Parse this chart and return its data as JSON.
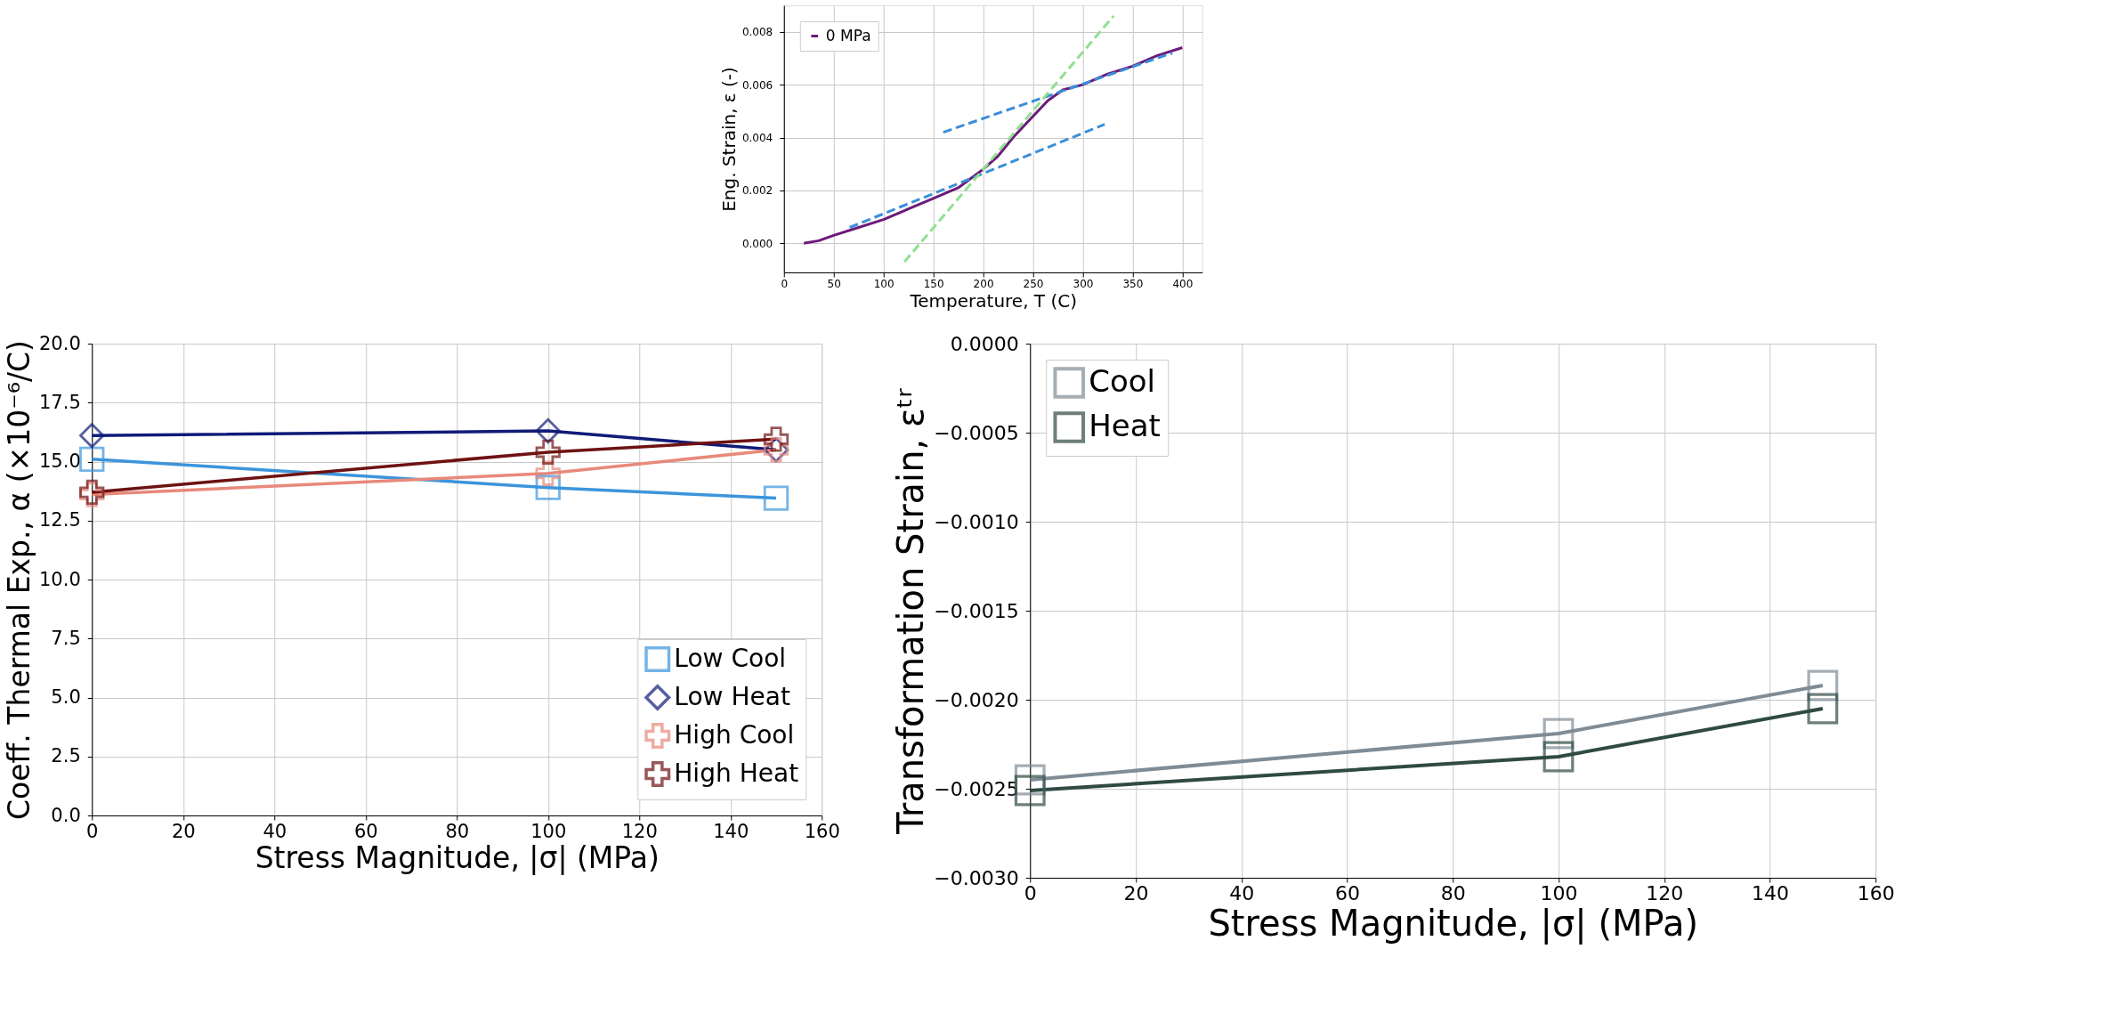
{
  "chart_data": [
    {
      "type": "line",
      "xlabel": "Temperature, T (C)",
      "ylabel": "Eng. Strain, ε (-)",
      "xlim": [
        0,
        420
      ],
      "ylim": [
        -0.0011,
        0.009
      ],
      "xticks": [
        0,
        50,
        100,
        150,
        200,
        250,
        300,
        350,
        400
      ],
      "yticks": [
        {
          "value": 0,
          "label": "0.000"
        },
        0.002,
        0.004,
        0.006,
        0.008
      ],
      "grid": true,
      "legend": "top left",
      "marker": "none",
      "series": [
        {
          "name": "0 MPa",
          "color": "#6a1b7a",
          "line_style": "solid",
          "x": [
            20,
            35,
            50,
            75,
            100,
            125,
            150,
            175,
            200,
            215,
            230,
            250,
            265,
            280,
            300,
            325,
            350,
            375,
            400
          ],
          "values": [
            0,
            0.0001,
            0.0003,
            0.0006,
            0.0009,
            0.0013,
            0.0017,
            0.0021,
            0.0028,
            0.0033,
            0.004,
            0.0048,
            0.0054,
            0.0058,
            0.006,
            0.0064,
            0.0067,
            0.0071,
            0.0074
          ]
        },
        {
          "color": "#3a8fd9",
          "line_style": "dashed",
          "x": [
            66,
            322
          ],
          "values": [
            0.0006,
            0.0045
          ]
        },
        {
          "color": "#3a8fd9",
          "line_style": "dashed",
          "x": [
            160,
            390
          ],
          "values": [
            0.0042,
            0.0072
          ]
        },
        {
          "color": "#90e090",
          "line_style": "dashed",
          "x": [
            121,
            331
          ],
          "values": [
            -0.0007,
            0.0086
          ]
        }
      ]
    },
    {
      "type": "line",
      "xlabel": "Stress Magnitude, |σ| (MPa)",
      "ylabel": "Coeff. Thermal Exp., α (×10⁻⁶/C)",
      "xlim": [
        0,
        160
      ],
      "ylim": [
        0,
        20
      ],
      "xticks": [
        0,
        20,
        40,
        60,
        80,
        100,
        120,
        140,
        160
      ],
      "yticks": [
        {
          "value": 0,
          "label": "0.0"
        },
        2.5,
        {
          "value": 5,
          "label": "5.0"
        },
        7.5,
        {
          "value": 10,
          "label": "10.0"
        },
        12.5,
        {
          "value": 15,
          "label": "15.0"
        },
        17.5,
        {
          "value": 20,
          "label": "20.0"
        }
      ],
      "grid": true,
      "legend": "bottom right",
      "x": [
        0,
        100,
        150
      ],
      "series": [
        {
          "name": "Low Cool",
          "color": "#3c95dc",
          "marker": "square",
          "values": [
            15.1,
            13.9,
            13.45
          ]
        },
        {
          "name": "Low Heat",
          "color": "#101b78",
          "marker": "diamond",
          "values": [
            16.1,
            16.3,
            15.5
          ]
        },
        {
          "name": "High Cool",
          "color": "#e8897a",
          "marker": "cross",
          "values": [
            13.6,
            14.5,
            15.5
          ]
        },
        {
          "name": "High Heat",
          "color": "#6e1212",
          "marker": "cross",
          "values": [
            13.7,
            15.4,
            15.95
          ]
        }
      ]
    },
    {
      "type": "line",
      "xlabel": "Stress Magnitude, |σ| (MPa)",
      "ylabel": "Transformation Strain, εᵗʳ",
      "xlim": [
        0,
        160
      ],
      "ylim": [
        -0.003,
        0
      ],
      "xticks": [
        0,
        20,
        40,
        60,
        80,
        100,
        120,
        140,
        160
      ],
      "yticks": [
        {
          "value": -0.003,
          "label": "−0.0030"
        },
        {
          "value": -0.0025,
          "label": "−0.0025"
        },
        {
          "value": -0.002,
          "label": "−0.0020"
        },
        {
          "value": -0.0015,
          "label": "−0.0015"
        },
        {
          "value": -0.001,
          "label": "−0.0010"
        },
        {
          "value": -0.0005,
          "label": "−0.0005"
        },
        {
          "value": 0,
          "label": "0.0000"
        }
      ],
      "grid": true,
      "legend": "top left",
      "marker": "square",
      "x": [
        0,
        100,
        150
      ],
      "series": [
        {
          "name": "Cool",
          "color": "#7f8c96",
          "values": [
            -0.00245,
            -0.00219,
            -0.00192
          ]
        },
        {
          "name": "Heat",
          "color": "#2f4a44",
          "values": [
            -0.00251,
            -0.00232,
            -0.00205
          ]
        }
      ]
    }
  ]
}
